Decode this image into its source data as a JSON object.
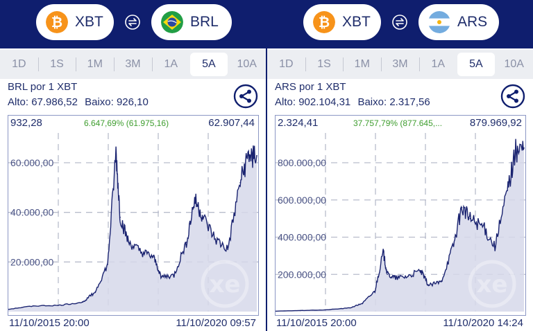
{
  "left": {
    "from_currency": "XBT",
    "to_currency": "BRL",
    "periods": [
      "1D",
      "1S",
      "1M",
      "3M",
      "1A",
      "5A",
      "10A"
    ],
    "active_period": "5A",
    "rate_title": "BRL por 1 XBT",
    "high_label": "Alto:",
    "high_value": "67.986,52",
    "low_label": "Baixo:",
    "low_value": "926,10",
    "start_value": "932,28",
    "change_text": "6.647,69% (61.975,16)",
    "end_value": "62.907,44",
    "start_date": "11/10/2015 20:00",
    "end_date": "11/10/2020 09:57",
    "y_ticks": [
      "20.000,00",
      "40.000,00",
      "60.000,00"
    ]
  },
  "right": {
    "from_currency": "XBT",
    "to_currency": "ARS",
    "periods": [
      "1D",
      "1S",
      "1M",
      "3M",
      "1A",
      "5A",
      "10A"
    ],
    "active_period": "5A",
    "rate_title": "ARS por 1 XBT",
    "high_label": "Alto:",
    "high_value": "902.104,31",
    "low_label": "Baixo:",
    "low_value": "2.317,56",
    "start_value": "2.324,41",
    "change_text": "37.757,79% (877.645,...",
    "end_value": "879.969,92",
    "start_date": "11/10/2015 20:00",
    "end_date": "11/10/2020 14:24",
    "y_ticks": [
      "200.000,00",
      "400.000,00",
      "600.000,00",
      "800.000,00"
    ]
  },
  "icons": [
    "bitcoin-icon",
    "swap-icon",
    "brazil-flag-icon",
    "argentina-flag-icon",
    "share-icon",
    "xe-watermark-icon"
  ],
  "colors": {
    "header": "#0f1e6e",
    "bitcoin": "#f7931a",
    "change_positive": "#3e9d2e",
    "line": "#1a2370",
    "area": "#d6d8ea"
  },
  "chart_data": [
    {
      "type": "area",
      "title": "BRL por 1 XBT",
      "x": [
        "2015-10",
        "2016-04",
        "2016-10",
        "2017-04",
        "2017-07",
        "2017-10",
        "2017-12",
        "2018-01",
        "2018-03",
        "2018-06",
        "2018-09",
        "2018-11",
        "2019-02",
        "2019-05",
        "2019-07",
        "2019-09",
        "2019-12",
        "2020-03",
        "2020-06",
        "2020-08",
        "2020-10"
      ],
      "values": [
        932,
        2300,
        2500,
        3800,
        8000,
        19000,
        64000,
        38000,
        28000,
        24000,
        22000,
        14000,
        14500,
        28000,
        45000,
        38000,
        29000,
        25000,
        52000,
        63000,
        62907
      ],
      "ylim": [
        0,
        72000
      ],
      "y_ticks": [
        20000,
        40000,
        60000
      ],
      "grid": true
    },
    {
      "type": "area",
      "title": "ARS por 1 XBT",
      "x": [
        "2015-10",
        "2016-04",
        "2016-10",
        "2017-04",
        "2017-07",
        "2017-10",
        "2017-12",
        "2018-01",
        "2018-03",
        "2018-06",
        "2018-09",
        "2018-11",
        "2019-02",
        "2019-05",
        "2019-07",
        "2019-09",
        "2019-12",
        "2020-03",
        "2020-06",
        "2020-08",
        "2020-10"
      ],
      "values": [
        2324,
        6000,
        9000,
        20000,
        45000,
        110000,
        320000,
        200000,
        180000,
        190000,
        220000,
        140000,
        160000,
        360000,
        560000,
        500000,
        460000,
        350000,
        650000,
        860000,
        879970
      ],
      "ylim": [
        0,
        960000
      ],
      "y_ticks": [
        200000,
        400000,
        600000,
        800000
      ],
      "grid": true
    }
  ]
}
